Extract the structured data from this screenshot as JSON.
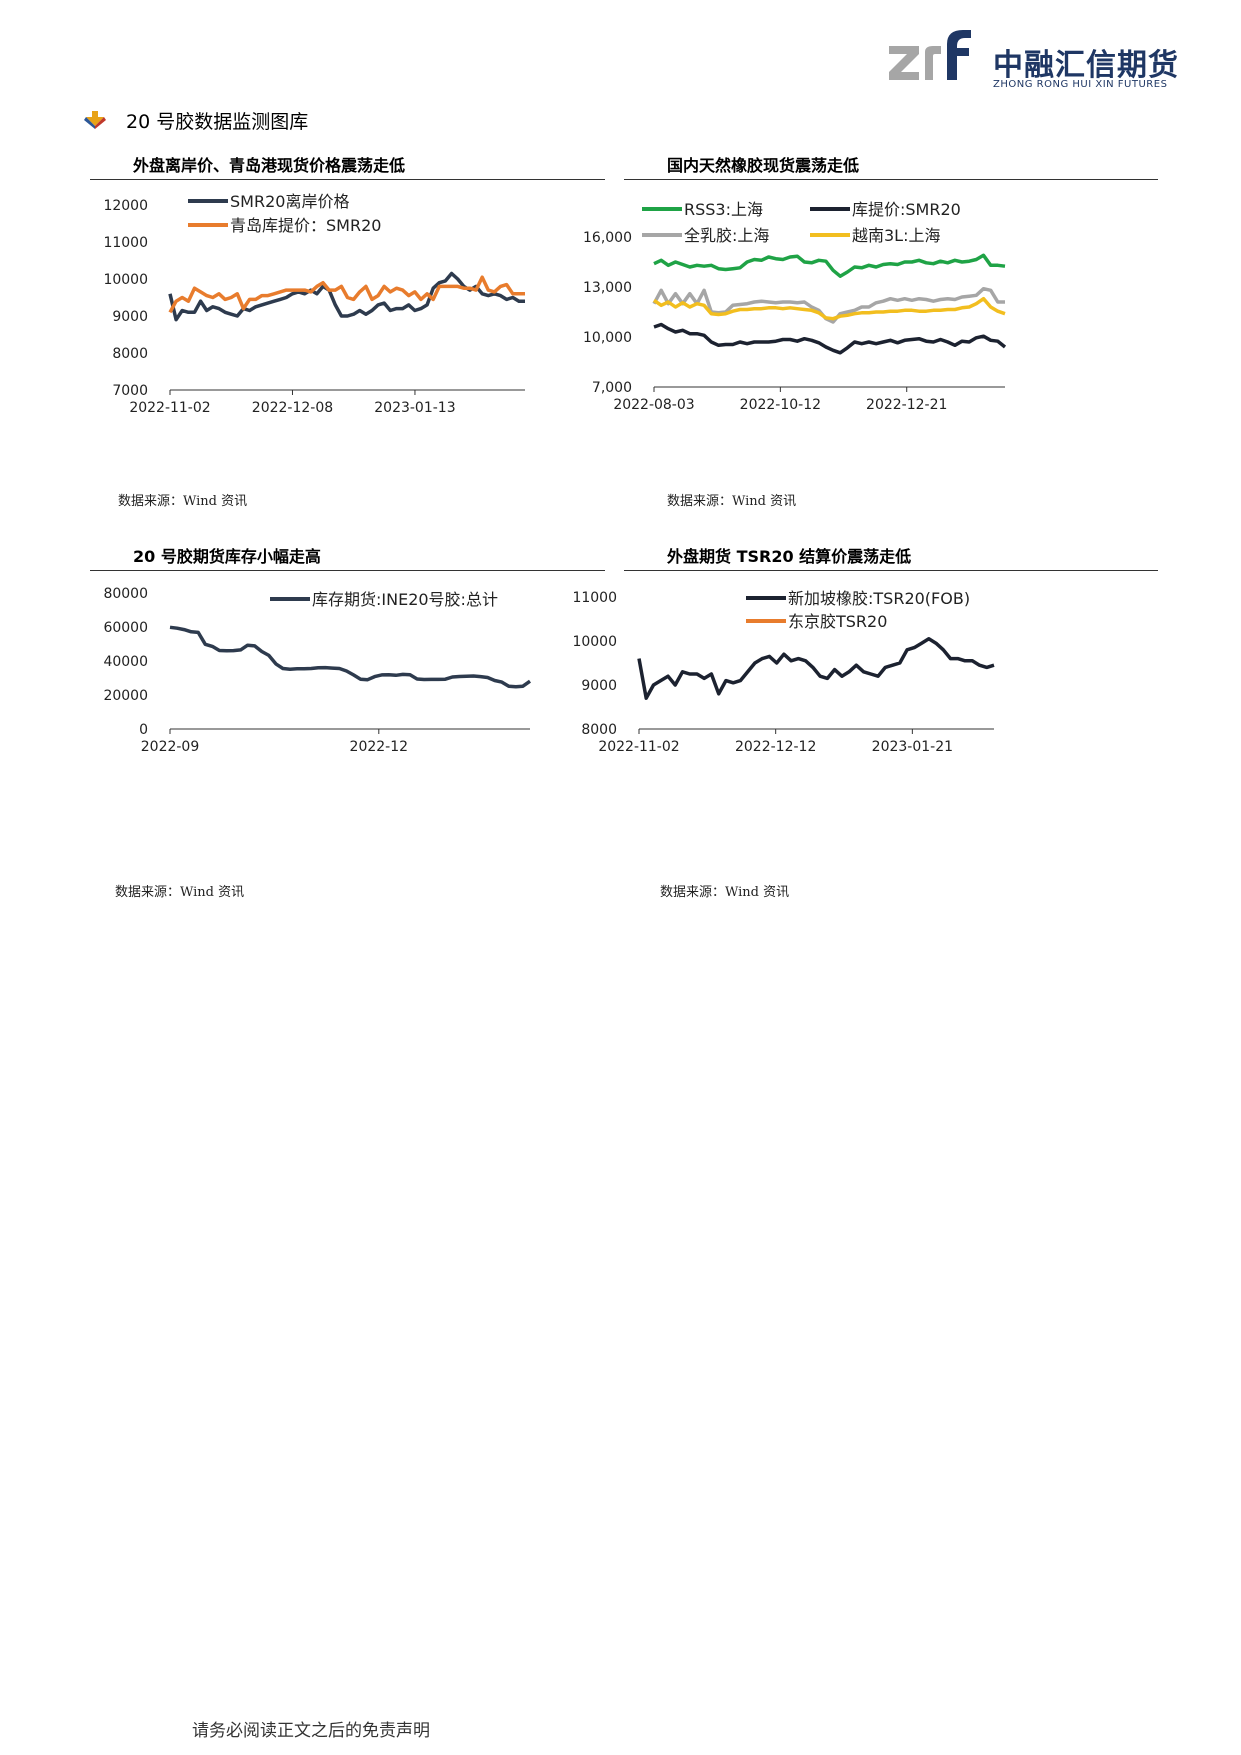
{
  "header": {
    "logo_cn": "中融汇信期货",
    "logo_en": "ZHONG RONG HUI XIN FUTURES",
    "logo_mark_text": "zrf",
    "brand_color": "#1f3764",
    "logo_gray": "#a6a6a6"
  },
  "section": {
    "title": "20 号胶数据监测图库"
  },
  "footer": {
    "text": "请务必阅读正文之后的免责声明"
  },
  "charts": [
    {
      "caption": "外盘离岸价、青岛港现货价格震荡走低",
      "source": "数据来源：Wind 资讯"
    },
    {
      "caption": "国内天然橡胶现货震荡走低",
      "source": "数据来源：Wind 资讯"
    },
    {
      "caption": "20 号胶期货库存小幅走高",
      "source": "数据来源：Wind 资讯"
    },
    {
      "caption": "外盘期货 TSR20 结算价震荡走低",
      "source": "数据来源：Wind 资讯"
    }
  ],
  "chart_data": [
    {
      "type": "line",
      "title": "外盘离岸价、青岛港现货价格震荡走低",
      "xlabel": "",
      "ylabel": "",
      "x_tick_labels": [
        "2022-11-02",
        "2022-12-08",
        "2023-01-13"
      ],
      "y_ticks": [
        7000,
        8000,
        9000,
        10000,
        11000,
        12000
      ],
      "ylim": [
        7000,
        12000
      ],
      "grid": true,
      "legend_position": "top-left",
      "series": [
        {
          "name": "SMR20离岸价格",
          "color": "#2e3b4e",
          "values": [
            9600,
            8900,
            9150,
            9100,
            9100,
            9400,
            9150,
            9250,
            9200,
            9100,
            9050,
            9000,
            9200,
            9150,
            9250,
            9300,
            9350,
            9400,
            9450,
            9500,
            9600,
            9650,
            9600,
            9700,
            9600,
            9800,
            9700,
            9300,
            9000,
            9000,
            9050,
            9150,
            9050,
            9150,
            9300,
            9350,
            9150,
            9200,
            9200,
            9300,
            9150,
            9200,
            9300,
            9750,
            9900,
            9950,
            10150,
            10000,
            9800,
            9700,
            9800,
            9600,
            9550,
            9600,
            9550,
            9450,
            9500,
            9400,
            9400
          ]
        },
        {
          "name": "青岛库提价：SMR20",
          "color": "#e87c2d",
          "values": [
            9100,
            9400,
            9500,
            9400,
            9750,
            9650,
            9550,
            9500,
            9600,
            9450,
            9500,
            9600,
            9200,
            9450,
            9450,
            9550,
            9550,
            9600,
            9650,
            9700,
            9700,
            9700,
            9700,
            9650,
            9800,
            9900,
            9700,
            9700,
            9800,
            9500,
            9450,
            9650,
            9800,
            9450,
            9550,
            9800,
            9650,
            9750,
            9700,
            9550,
            9650,
            9450,
            9600,
            9450,
            9800,
            9800,
            9800,
            9800,
            9750,
            9750,
            9700,
            10050,
            9700,
            9650,
            9800,
            9850,
            9600,
            9600,
            9600
          ]
        }
      ]
    },
    {
      "type": "line",
      "title": "国内天然橡胶现货震荡走低",
      "xlabel": "",
      "ylabel": "",
      "x_tick_labels": [
        "2022-08-03",
        "2022-10-12",
        "2022-12-21"
      ],
      "y_ticks": [
        7000,
        10000,
        13000,
        16000
      ],
      "y_tick_labels": [
        "7,000",
        "10,000",
        "13,000",
        "16,000"
      ],
      "ylim": [
        7000,
        16000
      ],
      "grid": true,
      "legend_position": "top",
      "series": [
        {
          "name": "RSS3:上海",
          "color": "#1fa346",
          "values": [
            14400,
            14600,
            14300,
            14500,
            14350,
            14200,
            14300,
            14250,
            14300,
            14100,
            14050,
            14100,
            14150,
            14500,
            14650,
            14600,
            14800,
            14700,
            14650,
            14800,
            14850,
            14500,
            14450,
            14600,
            14550,
            14000,
            13650,
            13900,
            14200,
            14150,
            14300,
            14200,
            14350,
            14400,
            14350,
            14500,
            14500,
            14600,
            14450,
            14400,
            14550,
            14450,
            14600,
            14500,
            14550,
            14650,
            14900,
            14300,
            14300,
            14250
          ]
        },
        {
          "name": "库提价:SMR20",
          "color": "#1c2230",
          "values": [
            10600,
            10750,
            10500,
            10300,
            10400,
            10200,
            10200,
            10100,
            9700,
            9500,
            9550,
            9550,
            9700,
            9600,
            9700,
            9700,
            9700,
            9750,
            9850,
            9850,
            9750,
            9900,
            9800,
            9650,
            9400,
            9200,
            9050,
            9350,
            9700,
            9600,
            9700,
            9600,
            9700,
            9800,
            9650,
            9800,
            9850,
            9900,
            9750,
            9700,
            9850,
            9700,
            9500,
            9750,
            9700,
            9950,
            10050,
            9800,
            9750,
            9400
          ]
        },
        {
          "name": "全乳胶:上海",
          "color": "#a6a6a6",
          "values": [
            12000,
            12800,
            12000,
            12600,
            12000,
            12600,
            12000,
            12800,
            11500,
            11450,
            11500,
            11900,
            11950,
            12000,
            12100,
            12150,
            12100,
            12050,
            12100,
            12100,
            12050,
            12100,
            11800,
            11600,
            11100,
            10900,
            11400,
            11500,
            11600,
            11800,
            11800,
            12050,
            12150,
            12300,
            12200,
            12300,
            12200,
            12300,
            12250,
            12150,
            12250,
            12300,
            12250,
            12400,
            12450,
            12500,
            12900,
            12800,
            12100,
            12100
          ]
        },
        {
          "name": "越南3L:上海",
          "color": "#f2be1f",
          "values": [
            12200,
            11900,
            12100,
            11800,
            12050,
            11800,
            12000,
            11900,
            11400,
            11350,
            11400,
            11550,
            11650,
            11650,
            11700,
            11700,
            11750,
            11750,
            11700,
            11750,
            11700,
            11650,
            11600,
            11450,
            11150,
            11100,
            11250,
            11300,
            11400,
            11450,
            11450,
            11500,
            11500,
            11550,
            11550,
            11600,
            11600,
            11550,
            11550,
            11600,
            11600,
            11650,
            11650,
            11750,
            11800,
            12000,
            12300,
            11800,
            11550,
            11400
          ]
        }
      ]
    },
    {
      "type": "line",
      "title": "20 号胶期货库存小幅走高",
      "xlabel": "",
      "ylabel": "",
      "x_tick_labels": [
        "2022-09",
        "2022-12"
      ],
      "y_ticks": [
        0,
        20000,
        40000,
        60000,
        80000
      ],
      "ylim": [
        0,
        80000
      ],
      "grid": true,
      "legend_position": "top-right",
      "series": [
        {
          "name": "库存期货:INE20号胶:总计",
          "color": "#2e3b4e",
          "values": [
            59800,
            59300,
            58500,
            57200,
            56800,
            49800,
            48600,
            46200,
            46000,
            46100,
            46500,
            49300,
            48900,
            45600,
            43300,
            38300,
            35600,
            35200,
            35400,
            35500,
            35600,
            36000,
            36100,
            35800,
            35600,
            34100,
            31800,
            29300,
            29000,
            30800,
            31800,
            31900,
            31600,
            32100,
            31900,
            29400,
            29100,
            29200,
            29200,
            29300,
            30600,
            30900,
            31000,
            31200,
            30800,
            30300,
            28500,
            27600,
            25100,
            24900,
            25200,
            28100
          ]
        }
      ]
    },
    {
      "type": "line",
      "title": "外盘期货 TSR20 结算价震荡走低",
      "xlabel": "",
      "ylabel": "",
      "x_tick_labels": [
        "2022-11-02",
        "2022-12-12",
        "2023-01-21"
      ],
      "y_ticks": [
        8000,
        9000,
        10000,
        11000
      ],
      "ylim": [
        8000,
        11000
      ],
      "grid": true,
      "legend_position": "top-right",
      "series": [
        {
          "name": "新加坡橡胶:TSR20(FOB)",
          "color": "#1c2230",
          "values": [
            9600,
            8700,
            9000,
            9100,
            9200,
            9000,
            9300,
            9250,
            9250,
            9150,
            9250,
            8800,
            9100,
            9050,
            9100,
            9300,
            9500,
            9600,
            9650,
            9500,
            9700,
            9550,
            9600,
            9550,
            9400,
            9200,
            9150,
            9350,
            9200,
            9300,
            9450,
            9300,
            9250,
            9200,
            9400,
            9450,
            9500,
            9800,
            9850,
            9950,
            10050,
            9950,
            9800,
            9600,
            9600,
            9550,
            9550,
            9450,
            9400,
            9450
          ]
        },
        {
          "name": "东京胶TSR20",
          "color": "#e87c2d",
          "values": []
        }
      ]
    }
  ]
}
